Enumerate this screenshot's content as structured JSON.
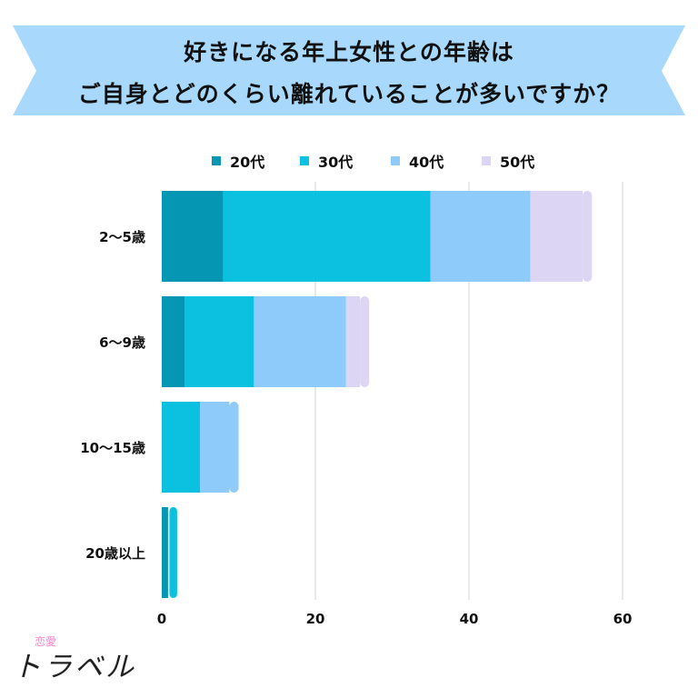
{
  "title": {
    "line1": "好きになる年上女性との年齢は",
    "line2": "ご自身とどのくらい離れていることが多いですか？"
  },
  "colors": {
    "banner": "#a8d8fb",
    "grid": "#d3d3d3",
    "text": "#111111"
  },
  "logo": {
    "ruby": "恋愛",
    "main": "トラベル"
  },
  "chart_data": {
    "type": "bar",
    "orientation": "horizontal",
    "stacked": true,
    "categories": [
      "2〜5歳",
      "6〜9歳",
      "10〜15歳",
      "20歳以上"
    ],
    "series": [
      {
        "name": "20代",
        "color": "#0496b2",
        "values": [
          8,
          3,
          0,
          1
        ]
      },
      {
        "name": "30代",
        "color": "#0cc0e0",
        "values": [
          27,
          9,
          5,
          1
        ]
      },
      {
        "name": "40代",
        "color": "#8fcbfa",
        "values": [
          13,
          12,
          5,
          0
        ]
      },
      {
        "name": "50代",
        "color": "#dcd6f4",
        "values": [
          8,
          3,
          0,
          0
        ]
      }
    ],
    "xlim": [
      0,
      60
    ],
    "xticks": [
      0,
      20,
      40,
      60
    ],
    "grid": true,
    "legend_position": "top"
  }
}
